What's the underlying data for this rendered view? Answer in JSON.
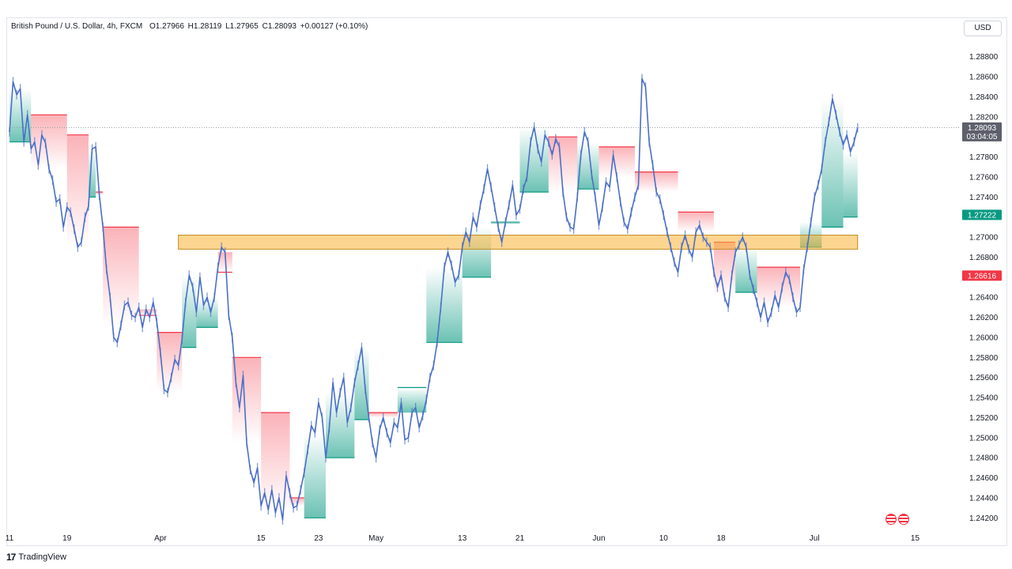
{
  "header": {
    "title": "British Pound / U.S. Dollar, 4h, FXCM",
    "o_label": "O",
    "o_value": "1.27966",
    "h_label": "H",
    "h_value": "1.28119",
    "l_label": "L",
    "l_value": "1.27965",
    "c_label": "C",
    "c_value": "1.28093",
    "change": "+0.00127 (+0.10%)"
  },
  "currency_button": "USD",
  "footer": {
    "brand": "TradingView"
  },
  "colors": {
    "candle": "#4a6fc9",
    "bear_band": "#f23645",
    "bull_band": "#089981",
    "zone_fill": "#f9b234",
    "zone_border": "#c48a1e",
    "current_price": "#5d606b",
    "green_marker": "#089981",
    "red_marker": "#f23645"
  },
  "chart_data": {
    "type": "line",
    "symbol": "GBPUSD",
    "interval": "4h",
    "ylim": [
      1.241,
      1.2905
    ],
    "y_ticks": [
      "1.28800",
      "1.28600",
      "1.28400",
      "1.28200",
      "1.27800",
      "1.27600",
      "1.27400",
      "1.27000",
      "1.26800",
      "1.26400",
      "1.26200",
      "1.26000",
      "1.25800",
      "1.25600",
      "1.25400",
      "1.25200",
      "1.25000",
      "1.24800",
      "1.24600",
      "1.24400",
      "1.24200"
    ],
    "x_ticks": [
      {
        "label": "11",
        "t": 0.0
      },
      {
        "label": "19",
        "t": 8.0
      },
      {
        "label": "Apr",
        "t": 21.0
      },
      {
        "label": "15",
        "t": 35.0
      },
      {
        "label": "23",
        "t": 43.0
      },
      {
        "label": "May",
        "t": 51.0
      },
      {
        "label": "13",
        "t": 63.0
      },
      {
        "label": "21",
        "t": 71.0
      },
      {
        "label": "Jun",
        "t": 82.0
      },
      {
        "label": "10",
        "t": 91.0
      },
      {
        "label": "18",
        "t": 99.0
      },
      {
        "label": "Jul",
        "t": 112.0
      },
      {
        "label": "15",
        "t": 126.0
      }
    ],
    "price_series": {
      "name": "GBPUSD",
      "points": [
        [
          0,
          1.2805
        ],
        [
          0.5,
          1.2855
        ],
        [
          1,
          1.2842
        ],
        [
          1.5,
          1.2848
        ],
        [
          2,
          1.2795
        ],
        [
          2.5,
          1.2822
        ],
        [
          3,
          1.2788
        ],
        [
          3.5,
          1.2795
        ],
        [
          4,
          1.2772
        ],
        [
          4.5,
          1.2802
        ],
        [
          5,
          1.2794
        ],
        [
          5.5,
          1.2768
        ],
        [
          6,
          1.2757
        ],
        [
          6.5,
          1.2735
        ],
        [
          7,
          1.2738
        ],
        [
          7.5,
          1.271
        ],
        [
          8,
          1.273
        ],
        [
          8.5,
          1.2725
        ],
        [
          9,
          1.2708
        ],
        [
          9.5,
          1.269
        ],
        [
          10,
          1.2695
        ],
        [
          10.5,
          1.272
        ],
        [
          11,
          1.2731
        ],
        [
          11.5,
          1.2788
        ],
        [
          12,
          1.279
        ],
        [
          12.5,
          1.2742
        ],
        [
          13,
          1.271
        ],
        [
          13.5,
          1.2668
        ],
        [
          14,
          1.264
        ],
        [
          14.5,
          1.26
        ],
        [
          15,
          1.2595
        ],
        [
          15.5,
          1.2612
        ],
        [
          16,
          1.2632
        ],
        [
          16.5,
          1.2635
        ],
        [
          17,
          1.2622
        ],
        [
          17.5,
          1.262
        ],
        [
          18,
          1.263
        ],
        [
          18.5,
          1.261
        ],
        [
          19,
          1.2628
        ],
        [
          19.5,
          1.262
        ],
        [
          20,
          1.2635
        ],
        [
          20.5,
          1.2615
        ],
        [
          21,
          1.2585
        ],
        [
          21.5,
          1.2548
        ],
        [
          22,
          1.2545
        ],
        [
          22.5,
          1.256
        ],
        [
          23,
          1.2578
        ],
        [
          23.5,
          1.2572
        ],
        [
          24,
          1.2598
        ],
        [
          24.5,
          1.2635
        ],
        [
          25,
          1.2662
        ],
        [
          25.5,
          1.265
        ],
        [
          26,
          1.2625
        ],
        [
          26.5,
          1.266
        ],
        [
          27,
          1.2632
        ],
        [
          27.5,
          1.264
        ],
        [
          28,
          1.2625
        ],
        [
          28.5,
          1.264
        ],
        [
          29,
          1.267
        ],
        [
          29.5,
          1.269
        ],
        [
          30,
          1.2685
        ],
        [
          30.5,
          1.2622
        ],
        [
          31,
          1.26
        ],
        [
          31.5,
          1.2555
        ],
        [
          32,
          1.253
        ],
        [
          32.5,
          1.2562
        ],
        [
          33,
          1.2495
        ],
        [
          33.5,
          1.2468
        ],
        [
          34,
          1.2455
        ],
        [
          34.5,
          1.247
        ],
        [
          35,
          1.2432
        ],
        [
          35.5,
          1.2445
        ],
        [
          36,
          1.2428
        ],
        [
          36.5,
          1.2448
        ],
        [
          37,
          1.2425
        ],
        [
          37.5,
          1.244
        ],
        [
          38,
          1.2418
        ],
        [
          38.5,
          1.2462
        ],
        [
          39,
          1.2445
        ],
        [
          39.5,
          1.243
        ],
        [
          40,
          1.2432
        ],
        [
          40.5,
          1.2448
        ],
        [
          41,
          1.2465
        ],
        [
          41.5,
          1.2488
        ],
        [
          42,
          1.2512
        ],
        [
          42.5,
          1.2505
        ],
        [
          43,
          1.2535
        ],
        [
          43.5,
          1.252
        ],
        [
          44,
          1.248
        ],
        [
          44.5,
          1.251
        ],
        [
          45,
          1.2555
        ],
        [
          45.5,
          1.2525
        ],
        [
          46,
          1.2545
        ],
        [
          46.5,
          1.256
        ],
        [
          47,
          1.2515
        ],
        [
          47.5,
          1.253
        ],
        [
          48,
          1.2555
        ],
        [
          48.5,
          1.2572
        ],
        [
          49,
          1.259
        ],
        [
          49.5,
          1.2548
        ],
        [
          50,
          1.252
        ],
        [
          50.5,
          1.2495
        ],
        [
          51,
          1.248
        ],
        [
          51.5,
          1.2508
        ],
        [
          52,
          1.252
        ],
        [
          52.5,
          1.2505
        ],
        [
          53,
          1.2495
        ],
        [
          53.5,
          1.2515
        ],
        [
          54,
          1.251
        ],
        [
          54.5,
          1.2535
        ],
        [
          55,
          1.2498
        ],
        [
          55.5,
          1.25
        ],
        [
          56,
          1.2525
        ],
        [
          56.5,
          1.253
        ],
        [
          57,
          1.251
        ],
        [
          57.5,
          1.2522
        ],
        [
          58,
          1.2538
        ],
        [
          58.5,
          1.256
        ],
        [
          59,
          1.2572
        ],
        [
          59.5,
          1.2595
        ],
        [
          60,
          1.263
        ],
        [
          60.5,
          1.267
        ],
        [
          61,
          1.2685
        ],
        [
          61.5,
          1.2672
        ],
        [
          62,
          1.2655
        ],
        [
          62.5,
          1.2662
        ],
        [
          63,
          1.269
        ],
        [
          63.5,
          1.2705
        ],
        [
          64,
          1.2695
        ],
        [
          64.5,
          1.272
        ],
        [
          65,
          1.271
        ],
        [
          65.5,
          1.2732
        ],
        [
          66,
          1.2748
        ],
        [
          66.5,
          1.2768
        ],
        [
          67,
          1.275
        ],
        [
          67.5,
          1.273
        ],
        [
          68,
          1.271
        ],
        [
          68.5,
          1.2695
        ],
        [
          69,
          1.2715
        ],
        [
          69.5,
          1.2732
        ],
        [
          70,
          1.2752
        ],
        [
          70.5,
          1.2722
        ],
        [
          71,
          1.2728
        ],
        [
          71.5,
          1.2748
        ],
        [
          72,
          1.276
        ],
        [
          72.5,
          1.2795
        ],
        [
          73,
          1.281
        ],
        [
          73.5,
          1.2788
        ],
        [
          74,
          1.2775
        ],
        [
          74.5,
          1.2802
        ],
        [
          75,
          1.2795
        ],
        [
          75.5,
          1.2782
        ],
        [
          76,
          1.2798
        ],
        [
          76.5,
          1.279
        ],
        [
          77,
          1.2745
        ],
        [
          77.5,
          1.272
        ],
        [
          78,
          1.271
        ],
        [
          78.5,
          1.2708
        ],
        [
          79,
          1.274
        ],
        [
          79.5,
          1.2782
        ],
        [
          80,
          1.2805
        ],
        [
          80.5,
          1.2795
        ],
        [
          81,
          1.2762
        ],
        [
          81.5,
          1.274
        ],
        [
          82,
          1.2712
        ],
        [
          82.5,
          1.273
        ],
        [
          83,
          1.2755
        ],
        [
          83.5,
          1.275
        ],
        [
          84,
          1.2782
        ],
        [
          84.5,
          1.276
        ],
        [
          85,
          1.2735
        ],
        [
          85.5,
          1.2715
        ],
        [
          86,
          1.2708
        ],
        [
          86.5,
          1.2725
        ],
        [
          87,
          1.274
        ],
        [
          87.5,
          1.2752
        ],
        [
          88,
          1.2858
        ],
        [
          88.5,
          1.285
        ],
        [
          89,
          1.2795
        ],
        [
          89.5,
          1.2772
        ],
        [
          90,
          1.2745
        ],
        [
          90.5,
          1.2738
        ],
        [
          91,
          1.2722
        ],
        [
          91.5,
          1.2705
        ],
        [
          92,
          1.269
        ],
        [
          92.5,
          1.2675
        ],
        [
          93,
          1.2665
        ],
        [
          93.5,
          1.269
        ],
        [
          94,
          1.2702
        ],
        [
          94.5,
          1.2688
        ],
        [
          95,
          1.268
        ],
        [
          95.5,
          1.2705
        ],
        [
          96,
          1.2712
        ],
        [
          96.5,
          1.27
        ],
        [
          97,
          1.2695
        ],
        [
          97.5,
          1.269
        ],
        [
          98,
          1.2665
        ],
        [
          98.5,
          1.265
        ],
        [
          99,
          1.2662
        ],
        [
          99.5,
          1.264
        ],
        [
          100,
          1.263
        ],
        [
          100.5,
          1.2662
        ],
        [
          101,
          1.2685
        ],
        [
          101.5,
          1.2692
        ],
        [
          102,
          1.27
        ],
        [
          102.5,
          1.269
        ],
        [
          103,
          1.2662
        ],
        [
          103.5,
          1.2648
        ],
        [
          104,
          1.2635
        ],
        [
          104.5,
          1.262
        ],
        [
          105,
          1.2635
        ],
        [
          105.5,
          1.2615
        ],
        [
          106,
          1.2625
        ],
        [
          106.5,
          1.2642
        ],
        [
          107,
          1.263
        ],
        [
          107.5,
          1.265
        ],
        [
          108,
          1.2665
        ],
        [
          108.5,
          1.2658
        ],
        [
          109,
          1.264
        ],
        [
          109.5,
          1.2625
        ],
        [
          110,
          1.263
        ],
        [
          110.5,
          1.2668
        ],
        [
          111,
          1.269
        ],
        [
          111.5,
          1.2715
        ],
        [
          112,
          1.274
        ],
        [
          112.5,
          1.2752
        ],
        [
          113,
          1.2768
        ],
        [
          113.5,
          1.2795
        ],
        [
          114,
          1.2815
        ],
        [
          114.5,
          1.2838
        ],
        [
          115,
          1.2822
        ],
        [
          115.5,
          1.2805
        ],
        [
          116,
          1.2792
        ],
        [
          116.5,
          1.2802
        ],
        [
          117,
          1.2785
        ],
        [
          117.5,
          1.2795
        ],
        [
          118,
          1.2809
        ]
      ]
    },
    "stop_band": {
      "segments": [
        {
          "trend": "bull",
          "t0": 0,
          "t1": 3,
          "level": 1.2795
        },
        {
          "trend": "bear",
          "t0": 3,
          "t1": 8,
          "level": 1.2822
        },
        {
          "trend": "bear",
          "t0": 8,
          "t1": 11,
          "level": 1.2802
        },
        {
          "trend": "bull",
          "t0": 11,
          "t1": 12,
          "level": 1.274
        },
        {
          "trend": "bear",
          "t0": 12,
          "t1": 13,
          "level": 1.2745
        },
        {
          "trend": "bear",
          "t0": 13,
          "t1": 18,
          "level": 1.271
        },
        {
          "trend": "bear",
          "t0": 18,
          "t1": 20.5,
          "level": 1.2622
        },
        {
          "trend": "bear",
          "t0": 20.5,
          "t1": 24,
          "level": 1.2605
        },
        {
          "trend": "bull",
          "t0": 24,
          "t1": 26,
          "level": 1.259
        },
        {
          "trend": "bull",
          "t0": 26,
          "t1": 29,
          "level": 1.261
        },
        {
          "trend": "bear",
          "t0": 29,
          "t1": 31,
          "level": 1.2665
        },
        {
          "trend": "bear",
          "t0": 31,
          "t1": 35,
          "level": 1.258
        },
        {
          "trend": "bear",
          "t0": 35,
          "t1": 39,
          "level": 1.2525
        },
        {
          "trend": "bear",
          "t0": 39,
          "t1": 41,
          "level": 1.244
        },
        {
          "trend": "bull",
          "t0": 41,
          "t1": 44,
          "level": 1.242
        },
        {
          "trend": "bull",
          "t0": 44,
          "t1": 48,
          "level": 1.248
        },
        {
          "trend": "bull",
          "t0": 48,
          "t1": 50,
          "level": 1.2518
        },
        {
          "trend": "bear",
          "t0": 50,
          "t1": 54,
          "level": 1.2525
        },
        {
          "trend": "bull",
          "t0": 54,
          "t1": 58,
          "level": 1.255
        },
        {
          "trend": "bull",
          "t0": 58,
          "t1": 63,
          "level": 1.2595
        },
        {
          "trend": "bull",
          "t0": 63,
          "t1": 67,
          "level": 1.266
        },
        {
          "trend": "bull",
          "t0": 67,
          "t1": 71,
          "level": 1.2715
        },
        {
          "trend": "bull",
          "t0": 71,
          "t1": 75,
          "level": 1.2745
        },
        {
          "trend": "bear",
          "t0": 75,
          "t1": 79,
          "level": 1.28
        },
        {
          "trend": "bull",
          "t0": 79,
          "t1": 82,
          "level": 1.2748
        },
        {
          "trend": "bear",
          "t0": 82,
          "t1": 87,
          "level": 1.279
        },
        {
          "trend": "bear",
          "t0": 87,
          "t1": 93,
          "level": 1.2765
        },
        {
          "trend": "bear",
          "t0": 93,
          "t1": 98,
          "level": 1.2725
        },
        {
          "trend": "bear",
          "t0": 98,
          "t1": 101,
          "level": 1.2695
        },
        {
          "trend": "bull",
          "t0": 101,
          "t1": 104,
          "level": 1.2645
        },
        {
          "trend": "bear",
          "t0": 104,
          "t1": 110,
          "level": 1.267
        },
        {
          "trend": "bull",
          "t0": 110,
          "t1": 113,
          "level": 1.269
        },
        {
          "trend": "bull",
          "t0": 113,
          "t1": 116,
          "level": 1.271
        },
        {
          "trend": "bull",
          "t0": 116,
          "t1": 118,
          "level": 1.272
        }
      ]
    },
    "zone": {
      "t0": 23.5,
      "t1": 118.0,
      "y_low": 1.2688,
      "y_high": 1.2702
    },
    "markers": [
      {
        "name": "current-price",
        "value": "1.28093",
        "countdown": "03:04:05",
        "y": 1.28093,
        "color": "#5d606b"
      },
      {
        "name": "stop-up",
        "value": "1.27222",
        "y": 1.27222,
        "color": "#089981"
      },
      {
        "name": "stop-down",
        "value": "1.26616",
        "y": 1.26616,
        "color": "#f23645"
      }
    ]
  }
}
